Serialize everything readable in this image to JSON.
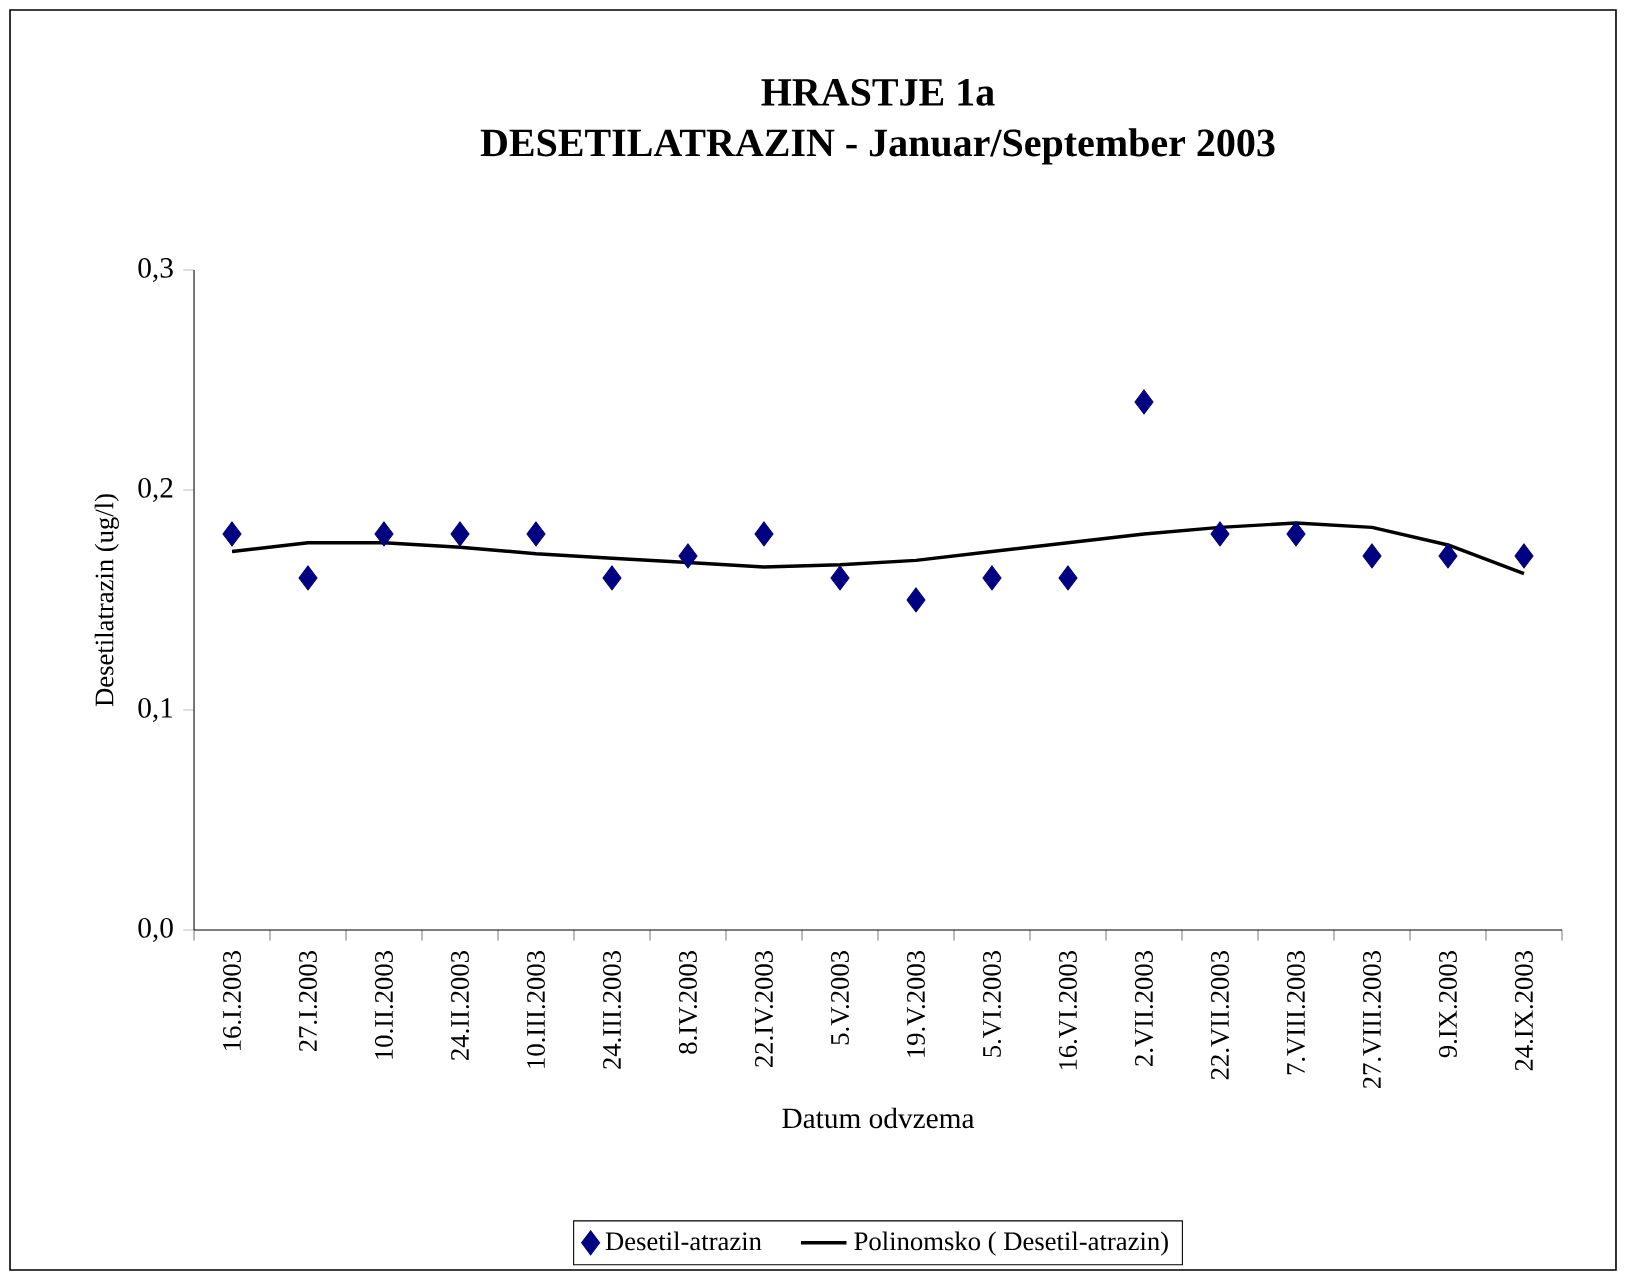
{
  "chart_data": {
    "type": "scatter",
    "title": "HRASTJE 1a\nDESETILATRAZIN - Januar/September 2003",
    "xlabel": "Datum odvzema",
    "ylabel": "Desetilatrazin (ug/l)",
    "categories": [
      "16.I.2003",
      "27.I.2003",
      "10.II.2003",
      "24.II.2003",
      "10.III.2003",
      "24.III.2003",
      "8.IV.2003",
      "22.IV.2003",
      "5.V.2003",
      "19.V.2003",
      "5.VI.2003",
      "16.VI.2003",
      "2.VII.2003",
      "22.VII.2003",
      "7.VIII.2003",
      "27.VIII.2003",
      "9.IX.2003",
      "24.IX.2003"
    ],
    "series": [
      {
        "name": "Desetil-atrazin",
        "marker": "diamond",
        "color": "#000080",
        "values": [
          0.18,
          0.16,
          0.18,
          0.18,
          0.18,
          0.16,
          0.17,
          0.18,
          0.16,
          0.15,
          0.16,
          0.16,
          0.24,
          0.18,
          0.18,
          0.17,
          0.17,
          0.17
        ]
      },
      {
        "name": "Polinomsko (    Desetil-atrazin)",
        "type": "line",
        "marker": "none",
        "line_style": "solid",
        "color": "#000000",
        "values": [
          0.172,
          0.176,
          0.176,
          0.174,
          0.171,
          0.169,
          0.167,
          0.165,
          0.166,
          0.168,
          0.172,
          0.176,
          0.18,
          0.183,
          0.185,
          0.183,
          0.175,
          0.162
        ]
      }
    ],
    "ylim": [
      0,
      0.3
    ],
    "yticks": [
      {
        "value": 0,
        "label": "0,0"
      },
      {
        "value": 0.1,
        "label": "0,1"
      },
      {
        "value": 0.2,
        "label": "0,2"
      },
      {
        "value": 0.3,
        "label": "0,3"
      }
    ],
    "grid": false,
    "legend": "bottom"
  }
}
